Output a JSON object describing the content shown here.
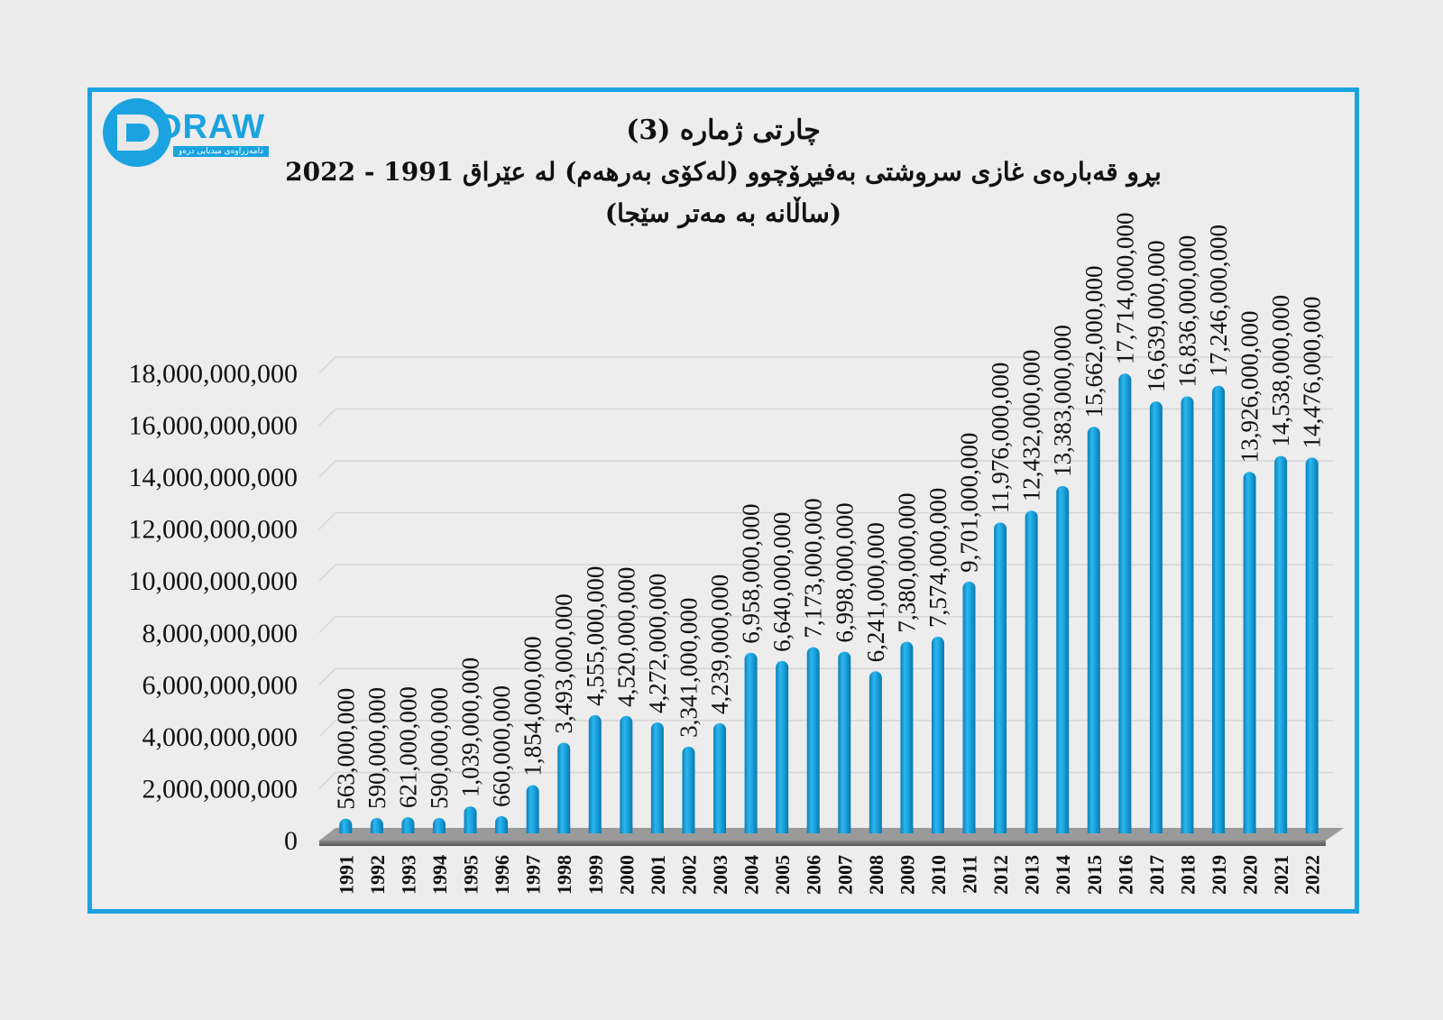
{
  "logo": {
    "brand": "DRAW",
    "tagline": "دامەزراوەی میدیایی درەو"
  },
  "chart_data": {
    "type": "bar",
    "title": "چارتی ژمارە (3)",
    "subtitle": "بڕو قەبارەی غازی سروشتی بەفیڕۆچوو (لەکۆی بەرهەم) لە عێراق 1991 - 2022",
    "unit_note": "(ساڵانە بە مەتر سێجا)",
    "xlabel": "",
    "ylabel": "",
    "ylim": [
      0,
      18000000000
    ],
    "yticks": [
      0,
      2000000000,
      4000000000,
      6000000000,
      8000000000,
      10000000000,
      12000000000,
      14000000000,
      16000000000,
      18000000000
    ],
    "ytick_labels": [
      "0",
      "2,000,000,000",
      "4,000,000,000",
      "6,000,000,000",
      "8,000,000,000",
      "10,000,000,000",
      "12,000,000,000",
      "14,000,000,000",
      "16,000,000,000",
      "18,000,000,000"
    ],
    "grid": true,
    "legend": "none",
    "bar_color": "#1aa3e0",
    "categories": [
      "1991",
      "1992",
      "1993",
      "1994",
      "1995",
      "1996",
      "1997",
      "1998",
      "1999",
      "2000",
      "2001",
      "2002",
      "2003",
      "2004",
      "2005",
      "2006",
      "2007",
      "2008",
      "2009",
      "2010",
      "2011",
      "2012",
      "2013",
      "2014",
      "2015",
      "2016",
      "2017",
      "2018",
      "2019",
      "2020",
      "2021",
      "2022"
    ],
    "values": [
      563000000,
      590000000,
      621000000,
      590000000,
      1039000000,
      660000000,
      1854000000,
      3493000000,
      4555000000,
      4520000000,
      4272000000,
      3341000000,
      4239000000,
      6958000000,
      6640000000,
      7173000000,
      6998000000,
      6241000000,
      7380000000,
      7574000000,
      9701000000,
      11976000000,
      12432000000,
      13383000000,
      15662000000,
      17714000000,
      16639000000,
      16836000000,
      17246000000,
      13926000000,
      14538000000,
      14476000000
    ],
    "data_labels": [
      "563,000,000",
      "590,000,000",
      "621,000,000",
      "590,000,000",
      "1,039,000,000",
      "660,000,000",
      "1,854,000,000",
      "3,493,000,000",
      "4,555,000,000",
      "4,520,000,000",
      "4,272,000,000",
      "3,341,000,000",
      "4,239,000,000",
      "6,958,000,000",
      "6,640,000,000",
      "7,173,000,000",
      "6,998,000,000",
      "6,241,000,000",
      "7,380,000,000",
      "7,574,000,000",
      "9,701,000,000",
      "11,976,000,000",
      "12,432,000,000",
      "13,383,000,000",
      "15,662,000,000",
      "17,714,000,000",
      "16,639,000,000",
      "16,836,000,000",
      "17,246,000,000",
      "13,926,000,000",
      "14,538,000,000",
      "14,476,000,000"
    ]
  }
}
